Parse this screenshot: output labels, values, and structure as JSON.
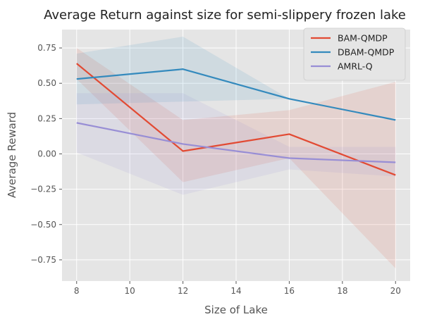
{
  "chart_data": {
    "type": "line",
    "title": "Average Return against size for semi-slippery frozen lake",
    "xlabel": "Size of Lake",
    "ylabel": "Average Reward",
    "x": [
      8,
      12,
      16,
      20
    ],
    "xlim": [
      7.45,
      20.55
    ],
    "ylim": [
      -0.9,
      0.88
    ],
    "xticks": [
      8,
      10,
      12,
      14,
      16,
      18,
      20
    ],
    "yticks": [
      -0.75,
      -0.5,
      -0.25,
      0.0,
      0.25,
      0.5,
      0.75
    ],
    "grid": true,
    "legend_position": "top-right",
    "series": [
      {
        "name": "BAM-QMDP",
        "color": "#E24A33",
        "values": [
          0.64,
          0.02,
          0.14,
          -0.15
        ],
        "band_upper": [
          0.75,
          0.24,
          0.31,
          0.51
        ],
        "band_lower": [
          0.53,
          -0.2,
          -0.03,
          -0.81
        ]
      },
      {
        "name": "DBAM-QMDP",
        "color": "#348ABD",
        "values": [
          0.53,
          0.6,
          0.39,
          0.24
        ],
        "band_upper": [
          0.71,
          0.83,
          0.39,
          0.24
        ],
        "band_lower": [
          0.35,
          0.37,
          0.39,
          0.24
        ]
      },
      {
        "name": "AMRL-Q",
        "color": "#988ED5",
        "values": [
          0.22,
          0.07,
          -0.03,
          -0.06
        ],
        "band_upper": [
          0.43,
          0.43,
          0.05,
          0.05
        ],
        "band_lower": [
          0.01,
          -0.29,
          -0.11,
          -0.16
        ]
      }
    ]
  }
}
